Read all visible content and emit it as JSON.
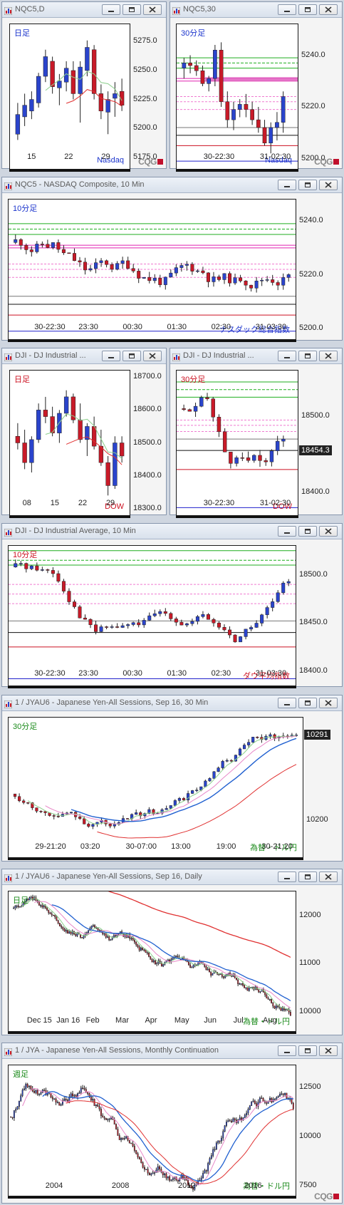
{
  "windows": [
    {
      "id": "w1",
      "title": "NQC5,D",
      "period_label": "日足",
      "instrument_label": "Nasdaq",
      "period_color": "#1a33cc",
      "instrument_color": "#1a33cc",
      "y_ticks": [
        "5275.0",
        "5250.0",
        "5225.0",
        "5200.0",
        "5175.0"
      ],
      "x_ticks": [
        "15",
        "22",
        "29"
      ],
      "show_cqg": true
    },
    {
      "id": "w2",
      "title": "NQC5,30",
      "period_label": "30分足",
      "instrument_label": "Nasdaq",
      "period_color": "#1a33cc",
      "instrument_color": "#1a33cc",
      "y_ticks": [
        "5240.0",
        "5220.0",
        "5200.0"
      ],
      "x_ticks": [
        "30-22:30",
        "31-02:30"
      ],
      "show_cqg": true
    },
    {
      "id": "w3",
      "title": "NQC5 - NASDAQ Composite, 10 Min",
      "period_label": "10分足",
      "instrument_label": "ナスダック総合指数",
      "period_color": "#1a33cc",
      "instrument_color": "#1a33cc",
      "y_ticks": [
        "5240.0",
        "5220.0",
        "5200.0"
      ],
      "x_ticks": [
        "30-22:30",
        "23:30",
        "00:30",
        "01:30",
        "02:30",
        "31-03:30"
      ],
      "show_cqg": false
    },
    {
      "id": "w4",
      "title": "DJI - DJ Industrial ...",
      "period_label": "日足",
      "instrument_label": "DOW",
      "period_color": "#cc1020",
      "instrument_color": "#cc1020",
      "y_ticks": [
        "18700.0",
        "18600.0",
        "18500.0",
        "18400.0",
        "18300.0"
      ],
      "x_ticks": [
        "08",
        "15",
        "22",
        "29"
      ],
      "show_cqg": false
    },
    {
      "id": "w5",
      "title": "DJI - DJ Industrial ...",
      "period_label": "30分足",
      "instrument_label": "DOW",
      "period_color": "#cc1020",
      "instrument_color": "#cc1020",
      "y_ticks": [
        "18500.0",
        "18400.0"
      ],
      "x_ticks": [
        "30-22:30",
        "31-02:30"
      ],
      "price_box": "18454.3",
      "show_cqg": false
    },
    {
      "id": "w6",
      "title": "DJI - DJ Industrial Average, 10 Min",
      "period_label": "10分足",
      "instrument_label": "ダウ平均指数",
      "period_color": "#cc1020",
      "instrument_color": "#cc1020",
      "y_ticks": [
        "18500.0",
        "18450.0",
        "18400.0"
      ],
      "x_ticks": [
        "30-22:30",
        "23:30",
        "00:30",
        "01:30",
        "02:30",
        "31-03:30"
      ],
      "show_cqg": false
    },
    {
      "id": "w7",
      "title": "1 / JYAU6 - Japanese Yen-All Sessions, Sep 16, 30 Min",
      "period_label": "30分足",
      "instrument_label": "為替・ドル円",
      "period_color": "#1a8a1a",
      "instrument_color": "#1a8a1a",
      "y_ticks": [
        "10200"
      ],
      "x_ticks": [
        "29-21:20",
        "03:20",
        "30-07:00",
        "13:00",
        "19:00",
        "30-21:20"
      ],
      "price_box": "10291",
      "show_cqg": false
    },
    {
      "id": "w8",
      "title": "1 / JYAU6 - Japanese Yen-All Sessions, Sep 16, Daily",
      "period_label": "日足",
      "instrument_label": "為替・ドル円",
      "period_color": "#1a8a1a",
      "instrument_color": "#1a8a1a",
      "y_ticks": [
        "12000",
        "11000",
        "10000"
      ],
      "x_ticks": [
        "Dec 15",
        "Jan 16",
        "Feb",
        "Mar",
        "Apr",
        "May",
        "Jun",
        "Jul",
        "Aug"
      ],
      "show_cqg": false
    },
    {
      "id": "w9",
      "title": "1 / JYA - Japanese Yen-All Sessions, Monthly Continuation",
      "period_label": "週足",
      "instrument_label": "為替・ドル円",
      "period_color": "#1a8a1a",
      "instrument_color": "#1a8a1a",
      "y_ticks": [
        "12500",
        "10000",
        "7500"
      ],
      "x_ticks": [
        "2004",
        "2008",
        "2012",
        "2016"
      ],
      "show_cqg": true
    }
  ],
  "cqg_label": "CQG",
  "colors": {
    "up": "#2a44cc",
    "down": "#c81a28",
    "ma_red": "#e03030",
    "ma_blue": "#2060d0",
    "ma_green": "#8ccf8c",
    "ma_pink": "#e888c8"
  },
  "chart_data": [
    {
      "window": "w1",
      "type": "candlestick",
      "title": "NQC5,D",
      "ylim": [
        5165,
        5290
      ],
      "x_ticks": [
        "15",
        "22",
        "29"
      ],
      "ohlc": [
        [
          5195,
          5222,
          5190,
          5212
        ],
        [
          5210,
          5230,
          5202,
          5220
        ],
        [
          5215,
          5232,
          5208,
          5225
        ],
        [
          5222,
          5248,
          5218,
          5245
        ],
        [
          5245,
          5268,
          5240,
          5262
        ],
        [
          5258,
          5262,
          5230,
          5236
        ],
        [
          5235,
          5247,
          5220,
          5241
        ],
        [
          5240,
          5258,
          5232,
          5252
        ],
        [
          5250,
          5258,
          5225,
          5230
        ],
        [
          5230,
          5258,
          5205,
          5253
        ],
        [
          5250,
          5276,
          5245,
          5270
        ],
        [
          5268,
          5272,
          5225,
          5230
        ],
        [
          5230,
          5238,
          5208,
          5215
        ],
        [
          5214,
          5232,
          5195,
          5225
        ],
        [
          5226,
          5240,
          5210,
          5230
        ],
        [
          5232,
          5243,
          5215,
          5220
        ]
      ]
    },
    {
      "window": "w2",
      "type": "candlestick",
      "title": "NQC5,30",
      "ylim": [
        5196,
        5252
      ],
      "x_ticks": [
        "30-22:30",
        "31-02:30"
      ],
      "ohlc": [
        [
          5235,
          5239,
          5231,
          5237
        ],
        [
          5237,
          5240,
          5233,
          5236
        ],
        [
          5236,
          5238,
          5232,
          5234
        ],
        [
          5234,
          5236,
          5228,
          5229
        ],
        [
          5229,
          5232,
          5226,
          5231
        ],
        [
          5231,
          5244,
          5228,
          5242
        ],
        [
          5242,
          5245,
          5220,
          5222
        ],
        [
          5222,
          5226,
          5212,
          5215
        ],
        [
          5215,
          5222,
          5211,
          5219
        ],
        [
          5219,
          5223,
          5216,
          5221
        ],
        [
          5221,
          5225,
          5216,
          5219
        ],
        [
          5219,
          5222,
          5213,
          5215
        ],
        [
          5215,
          5220,
          5210,
          5212
        ],
        [
          5212,
          5215,
          5205,
          5206
        ],
        [
          5206,
          5214,
          5202,
          5212
        ],
        [
          5212,
          5218,
          5207,
          5214
        ],
        [
          5214,
          5226,
          5210,
          5224
        ]
      ]
    },
    {
      "window": "w3",
      "type": "candlestick",
      "title": "NQC5 - NASDAQ Composite, 10 Min",
      "ylim": [
        5196,
        5248
      ],
      "x_ticks": [
        "30-22:30",
        "23:30",
        "00:30",
        "01:30",
        "02:30",
        "31-03:30"
      ]
    },
    {
      "window": "w4",
      "type": "candlestick",
      "title": "DJI - DJ Industrial ...",
      "ylim": [
        18280,
        18720
      ],
      "x_ticks": [
        "08",
        "15",
        "22",
        "29"
      ]
    },
    {
      "window": "w5",
      "type": "candlestick",
      "title": "DJI - DJ Industrial ...",
      "ylim": [
        18370,
        18560
      ],
      "x_ticks": [
        "30-22:30",
        "31-02:30"
      ],
      "last_price": 18454.3
    },
    {
      "window": "w6",
      "type": "candlestick",
      "title": "DJI - DJ Industrial Average, 10 Min",
      "ylim": [
        18385,
        18530
      ],
      "x_ticks": [
        "30-22:30",
        "23:30",
        "00:30",
        "01:30",
        "02:30",
        "31-03:30"
      ]
    },
    {
      "window": "w7",
      "type": "candlestick",
      "title": "1 / JYAU6 - Japanese Yen-All Sessions, Sep 16, 30 Min",
      "ylim": [
        10160,
        10310
      ],
      "x_ticks": [
        "29-21:20",
        "03:20",
        "30-07:00",
        "13:00",
        "19:00",
        "30-21:20"
      ],
      "last_price": 10291
    },
    {
      "window": "w8",
      "type": "candlestick",
      "title": "1 / JYAU6 - Japanese Yen-All Sessions, Sep 16, Daily",
      "ylim": [
        9600,
        12500
      ],
      "x_ticks": [
        "Dec 15",
        "Jan 16",
        "Feb",
        "Mar",
        "Apr",
        "May",
        "Jun",
        "Jul",
        "Aug"
      ]
    },
    {
      "window": "w9",
      "type": "candlestick",
      "title": "1 / JYA - Japanese Yen-All Sessions, Monthly Continuation",
      "ylim": [
        7000,
        13600
      ],
      "x_ticks": [
        "2004",
        "2008",
        "2012",
        "2016"
      ]
    }
  ]
}
